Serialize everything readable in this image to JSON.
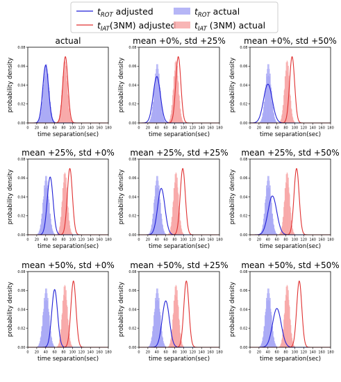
{
  "legend": {
    "placement": "top-center",
    "entries": [
      {
        "key": "rot_adj",
        "base": "t",
        "sub": "ROT",
        "suffix": " adjusted",
        "style": "line",
        "color": "#1f1fd6"
      },
      {
        "key": "iat_adj",
        "base": "t",
        "sub": "IAT",
        "suffix": "(3NM) adjusted",
        "style": "line",
        "color": "#e03030"
      },
      {
        "key": "rot_act",
        "base": "t",
        "sub": "ROT",
        "suffix": " actual",
        "style": "patch",
        "color": "#a9a9f5"
      },
      {
        "key": "iat_act",
        "base": "t",
        "sub": "IAT",
        "suffix": " (3NM) actual",
        "style": "patch",
        "color": "#f7a8a8"
      }
    ]
  },
  "colors": {
    "rot_line": "#1f1fd6",
    "iat_line": "#e03030",
    "rot_hist": "#a9a9f5",
    "iat_hist": "#f7a8a8"
  },
  "axes": {
    "xlabel": "time separation(sec)",
    "ylabel": "probability density",
    "xlim": [
      0,
      180
    ],
    "ylim": [
      0,
      0.08
    ],
    "xticks": [
      "0",
      "20",
      "40",
      "60",
      "80",
      "100",
      "120",
      "140",
      "160",
      "180"
    ],
    "yticks": [
      "0.00",
      "0.02",
      "0.04",
      "0.06",
      "0.08"
    ]
  },
  "chart_data": [
    {
      "type": "line",
      "title": "actual",
      "series": [
        {
          "name": "tROT adjusted",
          "mean": 40,
          "peak": 0.061
        },
        {
          "name": "tIAT(3NM) adjusted",
          "mean": 84,
          "peak": 0.07
        }
      ],
      "hist": [
        {
          "name": "tROT actual",
          "mean": 40,
          "peak": 0.064
        },
        {
          "name": "tIAT (3NM) actual",
          "mean": 82,
          "peak": 0.068
        }
      ],
      "xlim": [
        0,
        180
      ],
      "ylim": [
        0,
        0.08
      ]
    },
    {
      "type": "line",
      "title": "mean +0%, std +25%",
      "series": [
        {
          "name": "tROT adjusted",
          "mean": 40,
          "peak": 0.049
        },
        {
          "name": "tIAT(3NM) adjusted",
          "mean": 88,
          "peak": 0.07
        }
      ],
      "hist": [
        {
          "name": "tROT actual",
          "mean": 40,
          "peak": 0.064
        },
        {
          "name": "tIAT (3NM) actual",
          "mean": 82,
          "peak": 0.068
        }
      ],
      "xlim": [
        0,
        180
      ],
      "ylim": [
        0,
        0.08
      ]
    },
    {
      "type": "line",
      "title": "mean +0%, std +50%",
      "series": [
        {
          "name": "tROT adjusted",
          "mean": 40,
          "peak": 0.041
        },
        {
          "name": "tIAT(3NM) adjusted",
          "mean": 94,
          "peak": 0.07
        }
      ],
      "hist": [
        {
          "name": "tROT actual",
          "mean": 40,
          "peak": 0.064
        },
        {
          "name": "tIAT (3NM) actual",
          "mean": 82,
          "peak": 0.068
        }
      ],
      "xlim": [
        0,
        180
      ],
      "ylim": [
        0,
        0.08
      ]
    },
    {
      "type": "line",
      "title": "mean +25%, std +0%",
      "series": [
        {
          "name": "tROT adjusted",
          "mean": 50,
          "peak": 0.061
        },
        {
          "name": "tIAT(3NM) adjusted",
          "mean": 94,
          "peak": 0.07
        }
      ],
      "hist": [
        {
          "name": "tROT actual",
          "mean": 40,
          "peak": 0.064
        },
        {
          "name": "tIAT (3NM) actual",
          "mean": 82,
          "peak": 0.068
        }
      ],
      "xlim": [
        0,
        180
      ],
      "ylim": [
        0,
        0.08
      ]
    },
    {
      "type": "line",
      "title": "mean +25%, std +25%",
      "series": [
        {
          "name": "tROT adjusted",
          "mean": 50,
          "peak": 0.049
        },
        {
          "name": "tIAT(3NM) adjusted",
          "mean": 98,
          "peak": 0.07
        }
      ],
      "hist": [
        {
          "name": "tROT actual",
          "mean": 40,
          "peak": 0.064
        },
        {
          "name": "tIAT (3NM) actual",
          "mean": 82,
          "peak": 0.068
        }
      ],
      "xlim": [
        0,
        180
      ],
      "ylim": [
        0,
        0.08
      ]
    },
    {
      "type": "line",
      "title": "mean +25%, std +50%",
      "series": [
        {
          "name": "tROT adjusted",
          "mean": 50,
          "peak": 0.041
        },
        {
          "name": "tIAT(3NM) adjusted",
          "mean": 104,
          "peak": 0.07
        }
      ],
      "hist": [
        {
          "name": "tROT actual",
          "mean": 40,
          "peak": 0.064
        },
        {
          "name": "tIAT (3NM) actual",
          "mean": 82,
          "peak": 0.068
        }
      ],
      "xlim": [
        0,
        180
      ],
      "ylim": [
        0,
        0.08
      ]
    },
    {
      "type": "line",
      "title": "mean +50%, std +0%",
      "series": [
        {
          "name": "tROT adjusted",
          "mean": 60,
          "peak": 0.061
        },
        {
          "name": "tIAT(3NM) adjusted",
          "mean": 102,
          "peak": 0.07
        }
      ],
      "hist": [
        {
          "name": "tROT actual",
          "mean": 40,
          "peak": 0.064
        },
        {
          "name": "tIAT (3NM) actual",
          "mean": 82,
          "peak": 0.068
        }
      ],
      "xlim": [
        0,
        180
      ],
      "ylim": [
        0,
        0.08
      ]
    },
    {
      "type": "line",
      "title": "mean +50%, std +25%",
      "series": [
        {
          "name": "tROT adjusted",
          "mean": 60,
          "peak": 0.049
        },
        {
          "name": "tIAT(3NM) adjusted",
          "mean": 106,
          "peak": 0.07
        }
      ],
      "hist": [
        {
          "name": "tROT actual",
          "mean": 40,
          "peak": 0.064
        },
        {
          "name": "tIAT (3NM) actual",
          "mean": 82,
          "peak": 0.068
        }
      ],
      "xlim": [
        0,
        180
      ],
      "ylim": [
        0,
        0.08
      ]
    },
    {
      "type": "line",
      "title": "mean +50%, std +50%",
      "series": [
        {
          "name": "tROT adjusted",
          "mean": 60,
          "peak": 0.041
        },
        {
          "name": "tIAT(3NM) adjusted",
          "mean": 110,
          "peak": 0.07
        }
      ],
      "hist": [
        {
          "name": "tROT actual",
          "mean": 40,
          "peak": 0.064
        },
        {
          "name": "tIAT (3NM) actual",
          "mean": 82,
          "peak": 0.068
        }
      ],
      "xlim": [
        0,
        180
      ],
      "ylim": [
        0,
        0.08
      ]
    }
  ]
}
